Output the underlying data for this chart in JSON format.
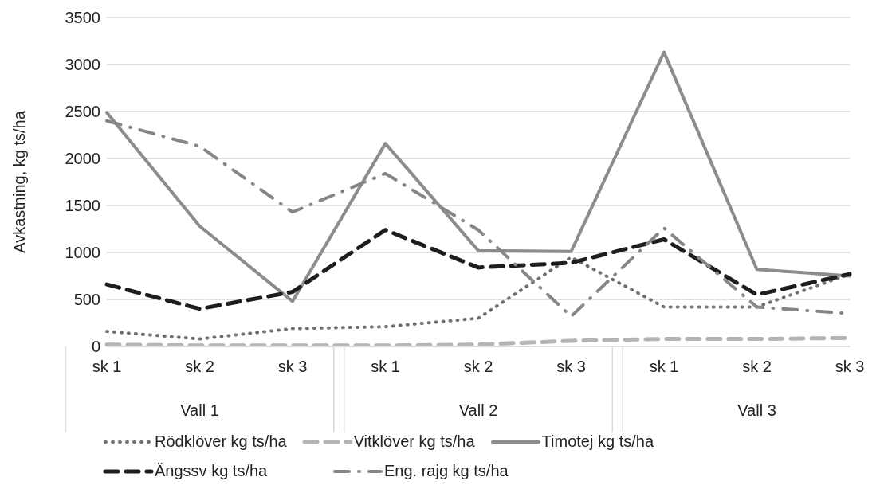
{
  "chart_data": {
    "type": "line",
    "ylabel": "Avkastning, kg ts/ha",
    "categories": [
      "sk 1",
      "sk 2",
      "sk 3",
      "sk 1",
      "sk 2",
      "sk 3",
      "sk 1",
      "sk 2",
      "sk 3"
    ],
    "annotations": [
      "Vall 1",
      "Vall 2",
      "Vall 3"
    ],
    "series": [
      {
        "name": "Rödklöver kg ts/ha",
        "color": "#707070",
        "line_style": "dotted",
        "values": [
          160,
          80,
          190,
          210,
          300,
          950,
          420,
          420,
          770
        ]
      },
      {
        "name": "Vitklöver kg ts/ha",
        "color": "#b4b4b4",
        "line_style": "dashed",
        "values": [
          20,
          10,
          10,
          10,
          20,
          60,
          80,
          80,
          90
        ]
      },
      {
        "name": "Timotej kg ts/ha",
        "color": "#8c8c8c",
        "line_style": "solid",
        "values": [
          2490,
          1280,
          480,
          2160,
          1020,
          1010,
          3130,
          820,
          750
        ]
      },
      {
        "name": "Ängssv kg ts/ha",
        "color": "#1e1e1e",
        "line_style": "dashed",
        "values": [
          660,
          400,
          580,
          1240,
          840,
          890,
          1140,
          550,
          770
        ]
      },
      {
        "name": "Eng. rajg kg ts/ha",
        "color": "#868686",
        "line_style": "dashdot",
        "values": [
          2400,
          2130,
          1430,
          1840,
          1240,
          320,
          1260,
          420,
          350
        ]
      }
    ],
    "ylim": [
      0,
      3500
    ],
    "yticks": [
      0,
      500,
      1000,
      1500,
      2000,
      2500,
      3000,
      3500
    ],
    "grid": "y",
    "legend": "bottom",
    "marker": "none"
  }
}
